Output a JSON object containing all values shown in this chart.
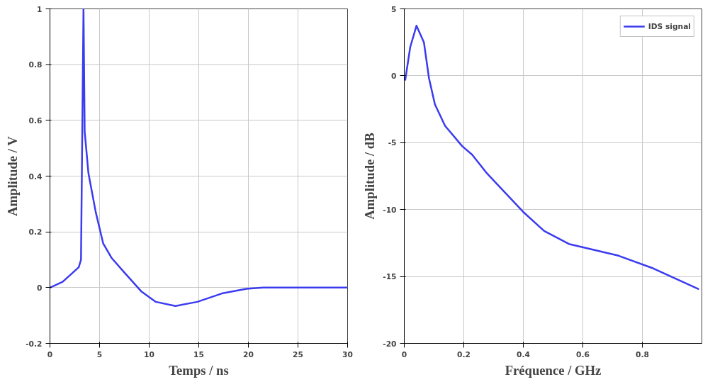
{
  "chart_data": [
    {
      "type": "line",
      "xlabel": "Temps / ns",
      "ylabel": "Amplitude / V",
      "xlim": [
        0,
        30
      ],
      "ylim": [
        -0.2,
        1
      ],
      "xticks": [
        0,
        5,
        10,
        15,
        20,
        25,
        30
      ],
      "yticks": [
        -0.2,
        0,
        0.2,
        0.4,
        0.6,
        0.8,
        1
      ],
      "grid": true,
      "legend": false,
      "series": [
        {
          "color": "#3b3bf0",
          "x": [
            0,
            1.28,
            2.9,
            3.13,
            3.38,
            3.5,
            3.88,
            4.62,
            5.36,
            6.2,
            7.46,
            9.19,
            10.67,
            12.64,
            14.86,
            17.33,
            19.8,
            21.5,
            30
          ],
          "values": [
            0,
            0.021,
            0.073,
            0.1,
            1.0,
            0.56,
            0.41,
            0.27,
            0.159,
            0.107,
            0.056,
            -0.013,
            -0.051,
            -0.066,
            -0.051,
            -0.021,
            -0.004,
            0,
            0
          ]
        }
      ]
    },
    {
      "type": "line",
      "xlabel": "Fréquence / GHz",
      "ylabel": "Amplitude / dB",
      "xlim": [
        0,
        1
      ],
      "ylim": [
        -20,
        5
      ],
      "xticks": [
        0,
        0.2,
        0.4,
        0.6,
        0.8
      ],
      "yticks": [
        -20,
        -15,
        -10,
        -5,
        0,
        5
      ],
      "grid": true,
      "legend": "top right",
      "series": [
        {
          "name": "IDS signal",
          "color": "#3b3bf0",
          "x": [
            0.003,
            0.02,
            0.041,
            0.066,
            0.083,
            0.103,
            0.137,
            0.195,
            0.228,
            0.278,
            0.399,
            0.47,
            0.553,
            0.72,
            0.837,
            0.99
          ],
          "values": [
            -0.35,
            2.14,
            3.74,
            2.5,
            -0.18,
            -2.14,
            -3.74,
            -5.27,
            -5.9,
            -7.3,
            -10.16,
            -11.6,
            -12.57,
            -13.45,
            -14.4,
            -15.96
          ]
        }
      ]
    }
  ]
}
